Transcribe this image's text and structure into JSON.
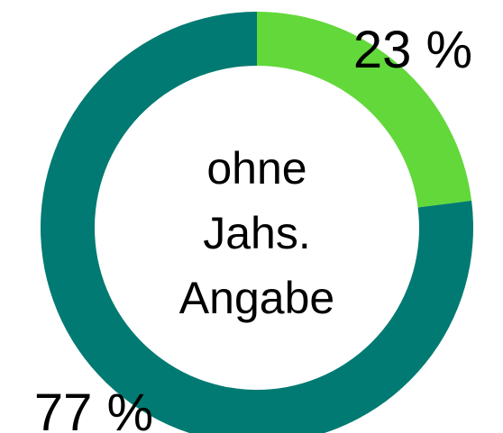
{
  "chart_data": {
    "type": "donut",
    "values": [
      23,
      77
    ],
    "value_labels": [
      "23 %",
      "77 %"
    ],
    "colors": [
      "#62d83a",
      "#007a72"
    ],
    "center_text": [
      "ohne",
      "Jahs.",
      "Angabe"
    ]
  }
}
